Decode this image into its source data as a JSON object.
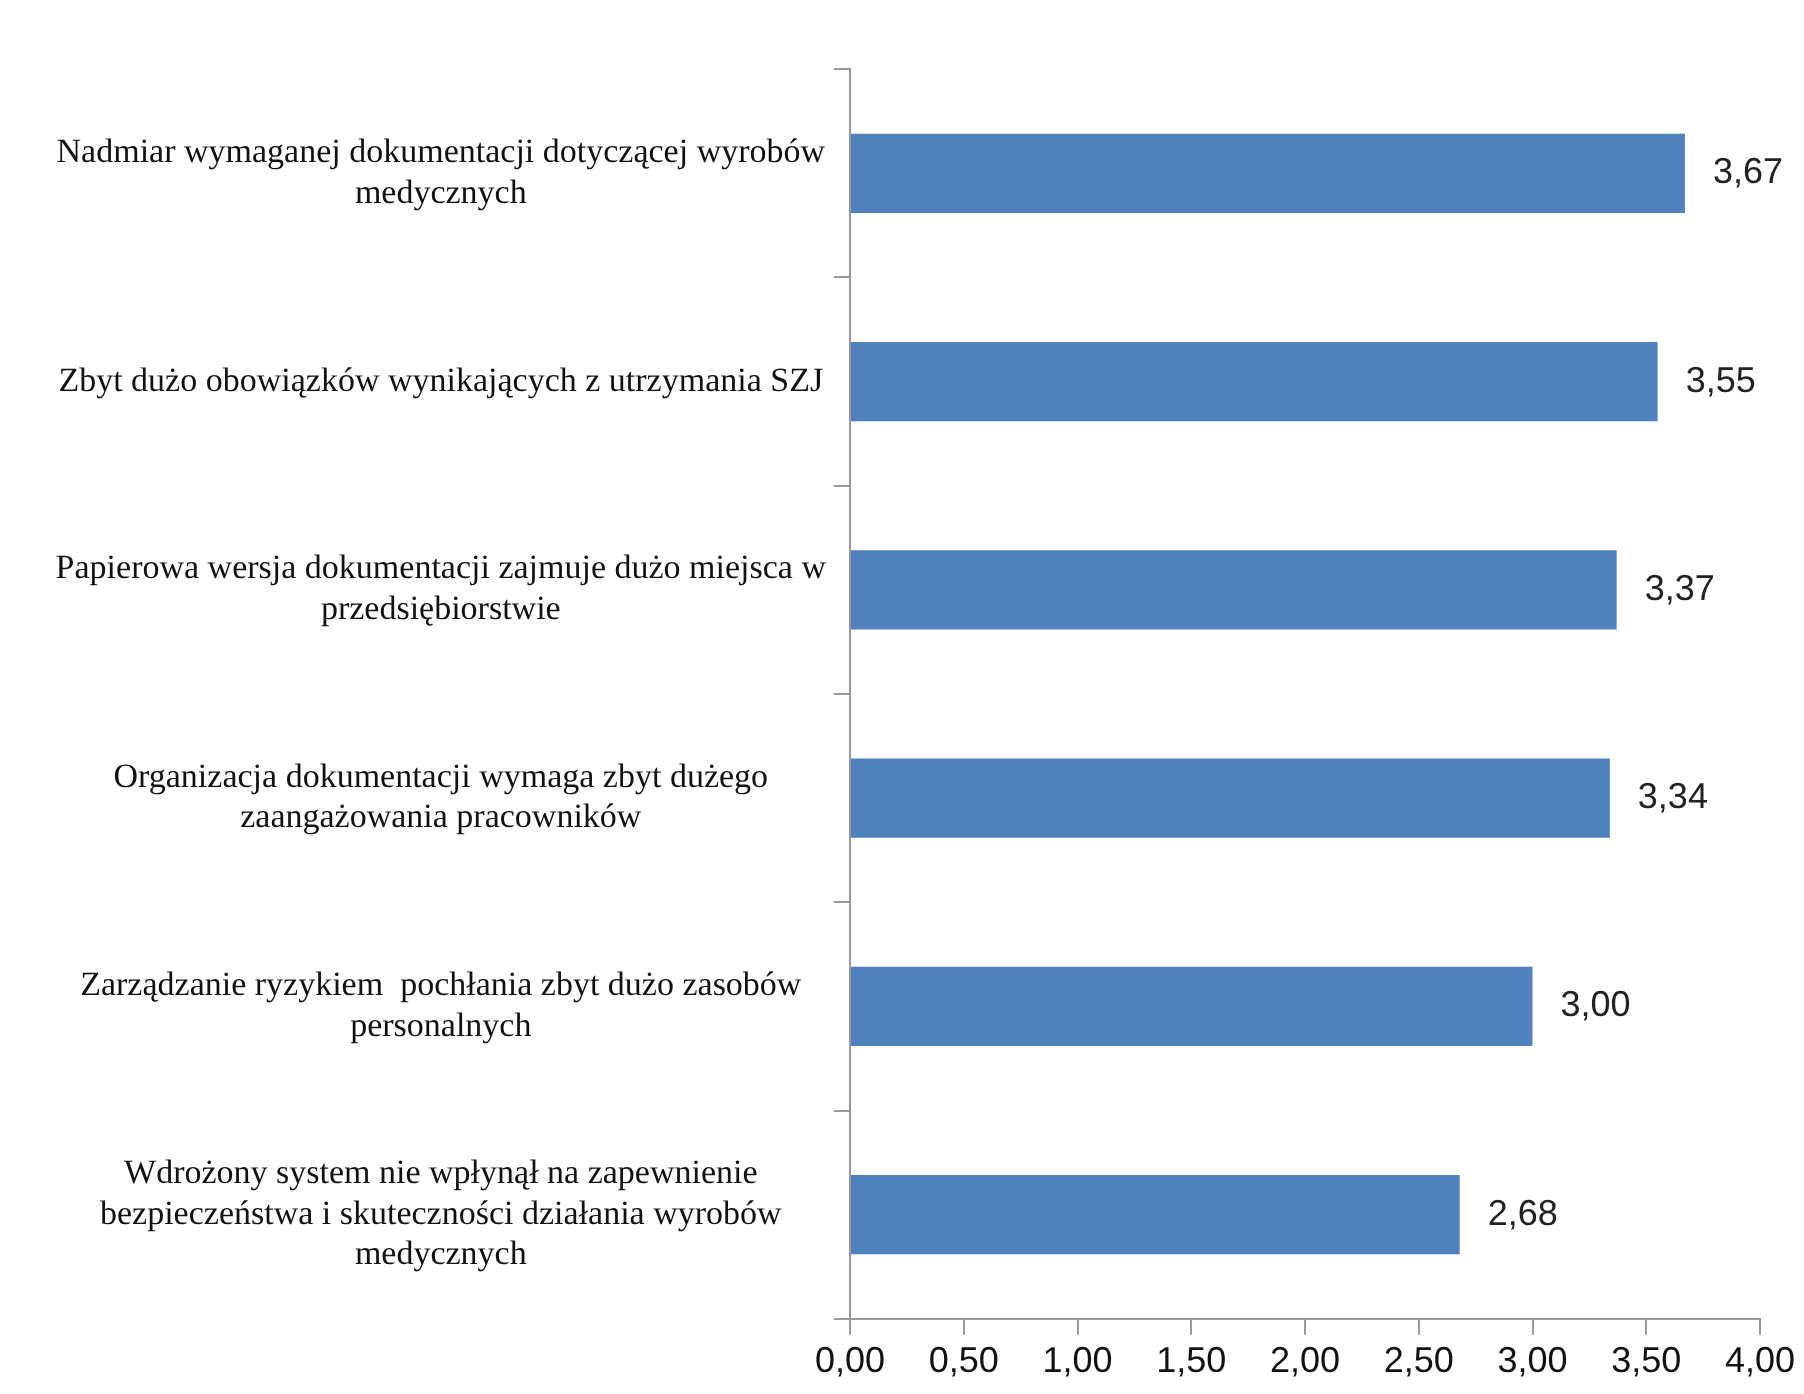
{
  "chart_data": {
    "type": "bar",
    "orientation": "horizontal",
    "categories": [
      "Nadmiar wymaganej dokumentacji dotyczącej wyrobów medycznych",
      "Zbyt dużo obowiązków wynikających z utrzymania SZJ",
      "Papierowa wersja dokumentacji zajmuje dużo miejsca w przedsiębiorstwie",
      "Organizacja dokumentacji wymaga zbyt dużego zaangażowania pracowników",
      "Zarządzanie ryzykiem  pochłania zbyt dużo zasobów personalnych",
      "Wdrożony system nie wpłynął na zapewnienie bezpieczeństwa i skuteczności działania wyrobów medycznych"
    ],
    "values": [
      3.67,
      3.55,
      3.37,
      3.34,
      3.0,
      2.68
    ],
    "value_labels": [
      "3,67",
      "3,55",
      "3,37",
      "3,34",
      "3,00",
      "2,68"
    ],
    "color": "#4f81bd",
    "xlim": [
      0,
      4
    ],
    "xticks": [
      {
        "value": 0,
        "label": "0,00"
      },
      {
        "value": 0.5,
        "label": "0,50"
      },
      {
        "value": 1,
        "label": "1,00"
      },
      {
        "value": 1.5,
        "label": "1,50"
      },
      {
        "value": 2,
        "label": "2,00"
      },
      {
        "value": 2.5,
        "label": "2,50"
      },
      {
        "value": 3,
        "label": "3,00"
      },
      {
        "value": 3.5,
        "label": "3,50"
      },
      {
        "value": 4,
        "label": "4,00"
      }
    ],
    "grid": false,
    "legend": false
  }
}
